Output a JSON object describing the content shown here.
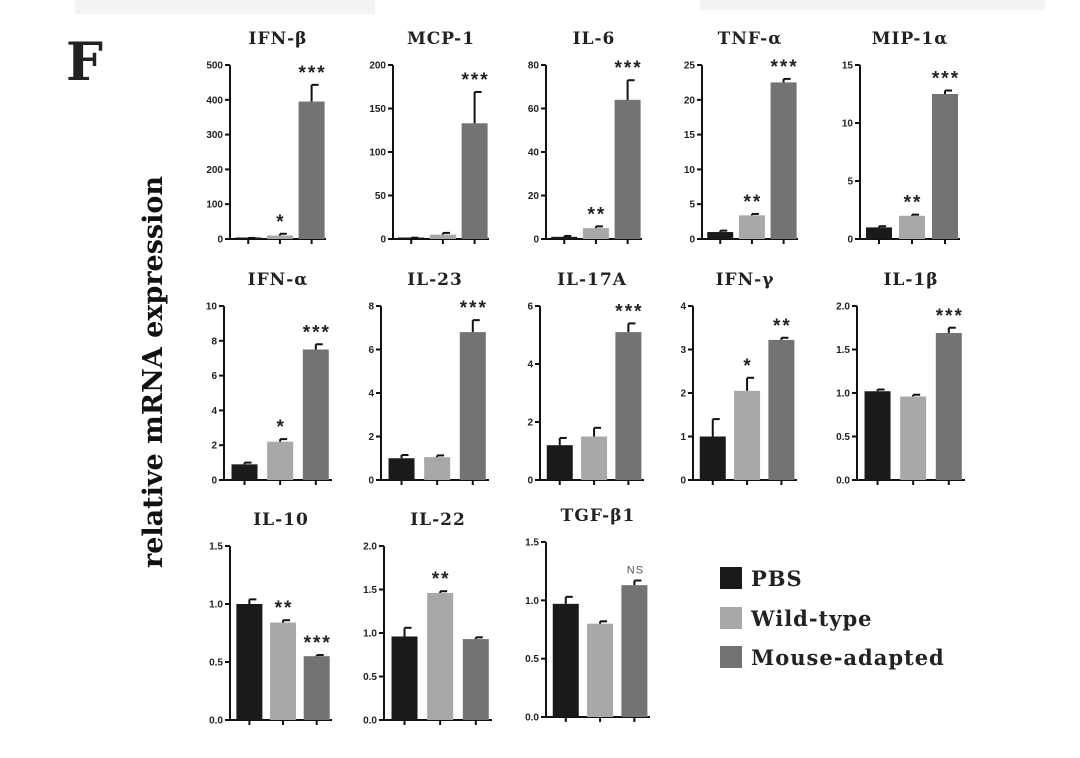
{
  "figure": {
    "panel_letter": "F",
    "ylabel": "relative mRNA expression"
  },
  "chart_data": [
    {
      "type": "bar",
      "title": "IFN-β",
      "categories": [
        "PBS",
        "Wild-type",
        "Mouse-adapted"
      ],
      "values": [
        2,
        10,
        395
      ],
      "errors": [
        1,
        5,
        48
      ],
      "sig": [
        "",
        "*",
        "***"
      ],
      "ylim": [
        0,
        500
      ],
      "yticks": [
        "0",
        "100",
        "200",
        "300",
        "400",
        "500"
      ]
    },
    {
      "type": "bar",
      "title": "MCP-1",
      "categories": [
        "PBS",
        "Wild-type",
        "Mouse-adapted"
      ],
      "values": [
        1,
        5,
        133
      ],
      "errors": [
        0.5,
        2,
        36
      ],
      "sig": [
        "",
        "",
        "***"
      ],
      "ylim": [
        0,
        200
      ],
      "yticks": [
        "0",
        "50",
        "100",
        "150",
        "200"
      ]
    },
    {
      "type": "bar",
      "title": "IL-6",
      "categories": [
        "PBS",
        "Wild-type",
        "Mouse-adapted"
      ],
      "values": [
        1,
        5,
        64
      ],
      "errors": [
        0.4,
        0.8,
        9
      ],
      "sig": [
        "",
        "**",
        "***"
      ],
      "ylim": [
        0,
        80
      ],
      "yticks": [
        "0",
        "20",
        "40",
        "60",
        "80"
      ]
    },
    {
      "type": "bar",
      "title": "TNF-α",
      "categories": [
        "PBS",
        "Wild-type",
        "Mouse-adapted"
      ],
      "values": [
        1,
        3.4,
        22.5
      ],
      "errors": [
        0.2,
        0.2,
        0.5
      ],
      "sig": [
        "",
        "**",
        "***"
      ],
      "ylim": [
        0,
        25
      ],
      "yticks": [
        "0",
        "5",
        "10",
        "15",
        "20",
        "25"
      ]
    },
    {
      "type": "bar",
      "title": "MIP-1α",
      "categories": [
        "PBS",
        "Wild-type",
        "Mouse-adapted"
      ],
      "values": [
        1,
        2,
        12.5
      ],
      "errors": [
        0.1,
        0.1,
        0.3
      ],
      "sig": [
        "",
        "**",
        "***"
      ],
      "ylim": [
        0,
        15
      ],
      "yticks": [
        "0",
        "5",
        "10",
        "15"
      ]
    },
    {
      "type": "bar",
      "title": "IFN-α",
      "categories": [
        "PBS",
        "Wild-type",
        "Mouse-adapted"
      ],
      "values": [
        0.9,
        2.2,
        7.5
      ],
      "errors": [
        0.1,
        0.15,
        0.3
      ],
      "sig": [
        "",
        "*",
        "***"
      ],
      "ylim": [
        0,
        10
      ],
      "yticks": [
        "0",
        "2",
        "4",
        "6",
        "8",
        "10"
      ]
    },
    {
      "type": "bar",
      "title": "IL-23",
      "categories": [
        "PBS",
        "Wild-type",
        "Mouse-adapted"
      ],
      "values": [
        1,
        1.05,
        6.8
      ],
      "errors": [
        0.15,
        0.08,
        0.55
      ],
      "sig": [
        "",
        "",
        "***"
      ],
      "ylim": [
        0,
        8
      ],
      "yticks": [
        "0",
        "2",
        "4",
        "6",
        "8"
      ]
    },
    {
      "type": "bar",
      "title": "IL-17A",
      "categories": [
        "PBS",
        "Wild-type",
        "Mouse-adapted"
      ],
      "values": [
        1.2,
        1.5,
        5.1
      ],
      "errors": [
        0.25,
        0.3,
        0.3
      ],
      "sig": [
        "",
        "",
        "***"
      ],
      "ylim": [
        0,
        6
      ],
      "yticks": [
        "0",
        "2",
        "4",
        "6"
      ]
    },
    {
      "type": "bar",
      "title": "IFN-γ",
      "categories": [
        "PBS",
        "Wild-type",
        "Mouse-adapted"
      ],
      "values": [
        1,
        2.05,
        3.22
      ],
      "errors": [
        0.4,
        0.3,
        0.05
      ],
      "sig": [
        "",
        "*",
        "**"
      ],
      "ylim": [
        0,
        4
      ],
      "yticks": [
        "0",
        "1",
        "2",
        "3",
        "4"
      ]
    },
    {
      "type": "bar",
      "title": "IL-1β",
      "categories": [
        "PBS",
        "Wild-type",
        "Mouse-adapted"
      ],
      "values": [
        1.02,
        0.96,
        1.69
      ],
      "errors": [
        0.02,
        0.02,
        0.06
      ],
      "sig": [
        "",
        "",
        "***"
      ],
      "ylim": [
        0,
        2.0
      ],
      "yticks": [
        "0.0",
        "0.5",
        "1.0",
        "1.5",
        "2.0"
      ]
    },
    {
      "type": "bar",
      "title": "IL-10",
      "categories": [
        "PBS",
        "Wild-type",
        "Mouse-adapted"
      ],
      "values": [
        1.0,
        0.84,
        0.55
      ],
      "errors": [
        0.04,
        0.02,
        0.01
      ],
      "sig": [
        "",
        "**",
        "***"
      ],
      "ylim": [
        0,
        1.5
      ],
      "yticks": [
        "0.0",
        "0.5",
        "1.0",
        "1.5"
      ]
    },
    {
      "type": "bar",
      "title": "IL-22",
      "categories": [
        "PBS",
        "Wild-type",
        "Mouse-adapted"
      ],
      "values": [
        0.96,
        1.46,
        0.93
      ],
      "errors": [
        0.1,
        0.02,
        0.02
      ],
      "sig": [
        "",
        "**",
        ""
      ],
      "ylim": [
        0,
        2.0
      ],
      "yticks": [
        "0.0",
        "0.5",
        "1.0",
        "1.5",
        "2.0"
      ]
    },
    {
      "type": "bar",
      "title": "TGF-β1",
      "categories": [
        "PBS",
        "Wild-type",
        "Mouse-adapted"
      ],
      "values": [
        0.97,
        0.8,
        1.13
      ],
      "errors": [
        0.06,
        0.02,
        0.04
      ],
      "sig": [
        "",
        "",
        "NS"
      ],
      "ylim": [
        0,
        1.5
      ],
      "yticks": [
        "0.0",
        "0.5",
        "1.0",
        "1.5"
      ]
    }
  ],
  "legend": {
    "items": [
      {
        "label": "PBS",
        "color": "#1a1a1a"
      },
      {
        "label": "Wild-type",
        "color": "#a8a8a8"
      },
      {
        "label": "Mouse-adapted",
        "color": "#737373"
      }
    ]
  },
  "colors": {
    "bars": [
      "#1a1a1a",
      "#a8a8a8",
      "#737373"
    ],
    "axis": "#111111"
  }
}
